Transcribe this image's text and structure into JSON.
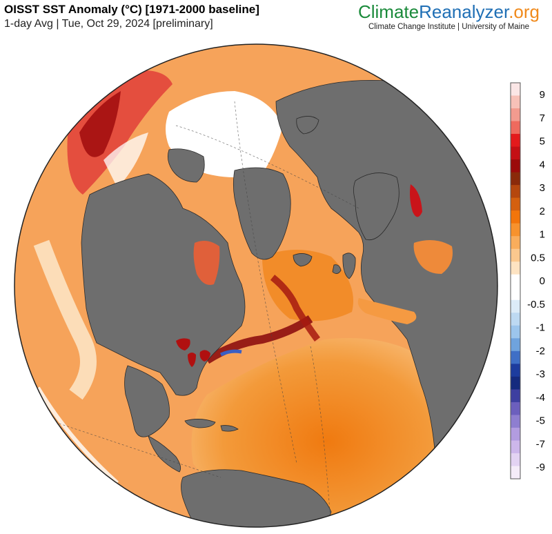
{
  "header": {
    "title": "OISST SST Anomaly (°C) [1971-2000 baseline]",
    "subtitle": "1-day Avg | Tue, Oct 29, 2024 [preliminary]"
  },
  "brand": {
    "part1": "Climate",
    "part2": "Reanalyzer",
    "part3": ".org",
    "tagline": "Climate Change Institute | University of Maine",
    "colors": {
      "part1": "#1a8a3a",
      "part2": "#1f6fb5",
      "part3": "#f08a1c"
    }
  },
  "map": {
    "projection": "orthographic",
    "land_color": "#6e6e6e",
    "sea_ice_color": "#ffffff"
  },
  "legend": {
    "unit": "°C",
    "labels": [
      "9",
      "7",
      "5",
      "4",
      "3",
      "2",
      "1",
      "0.5",
      "0",
      "-0.5",
      "-1",
      "-2",
      "-3",
      "-4",
      "-5",
      "-7",
      "-9"
    ],
    "colors": [
      "#fbe6e6",
      "#f7c1b8",
      "#f29b8f",
      "#ee6a5e",
      "#e31a1c",
      "#c40f14",
      "#9b0b0b",
      "#8a2a0a",
      "#b5470e",
      "#d4600f",
      "#f2750b",
      "#f7922d",
      "#f9ad5c",
      "#fbc88e",
      "#fde3c2",
      "#ffffff",
      "#ffffff",
      "#dcebf8",
      "#bdd9f2",
      "#9cc5ec",
      "#6fa3dd",
      "#3f6fc6",
      "#1d3c9e",
      "#152a7e",
      "#3d3fa0",
      "#6c5fbd",
      "#8e7ed0",
      "#b29ce0",
      "#cdb7eb",
      "#e3d3f3",
      "#f5ecf9"
    ]
  }
}
